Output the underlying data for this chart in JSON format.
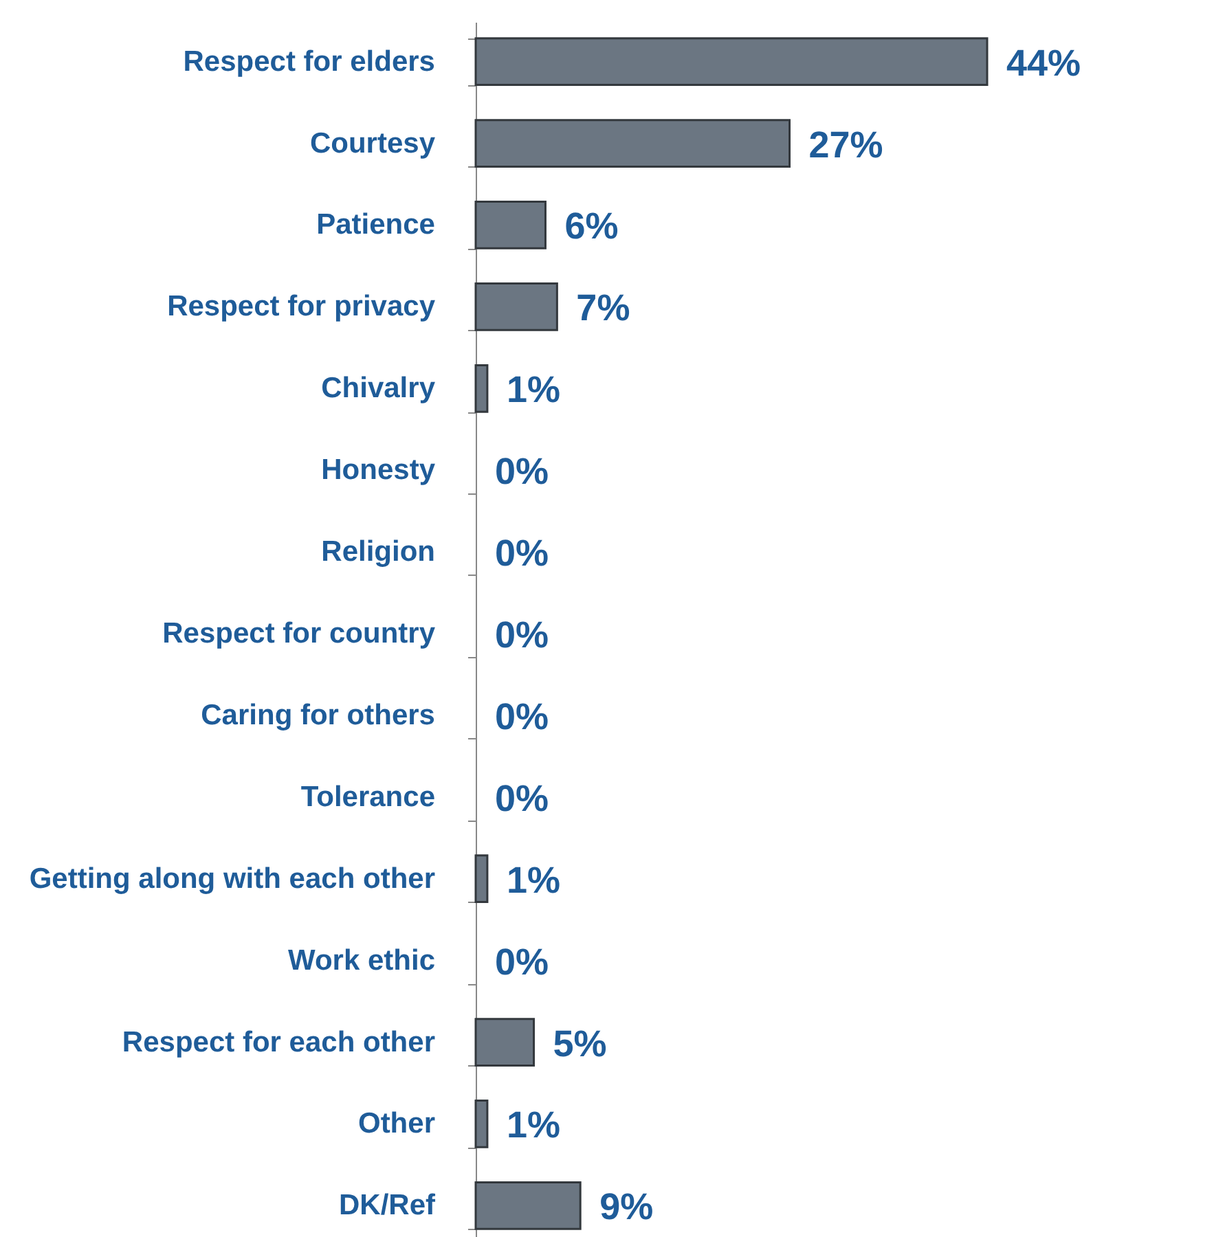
{
  "chart_data": {
    "type": "bar",
    "orientation": "horizontal",
    "categories": [
      "Respect for elders",
      "Courtesy",
      "Patience",
      "Respect for privacy",
      "Chivalry",
      "Honesty",
      "Religion",
      "Respect for country",
      "Caring for others",
      "Tolerance",
      "Getting along with each other",
      "Work ethic",
      "Respect for each other",
      "Other",
      "DK/Ref"
    ],
    "values": [
      44,
      27,
      6,
      7,
      1,
      0,
      0,
      0,
      0,
      0,
      1,
      0,
      5,
      1,
      9
    ],
    "value_labels": [
      "44%",
      "27%",
      "6%",
      "7%",
      "1%",
      "0%",
      "0%",
      "0%",
      "0%",
      "0%",
      "1%",
      "0%",
      "5%",
      "1%",
      "9%"
    ],
    "color": "#6b7682"
  }
}
